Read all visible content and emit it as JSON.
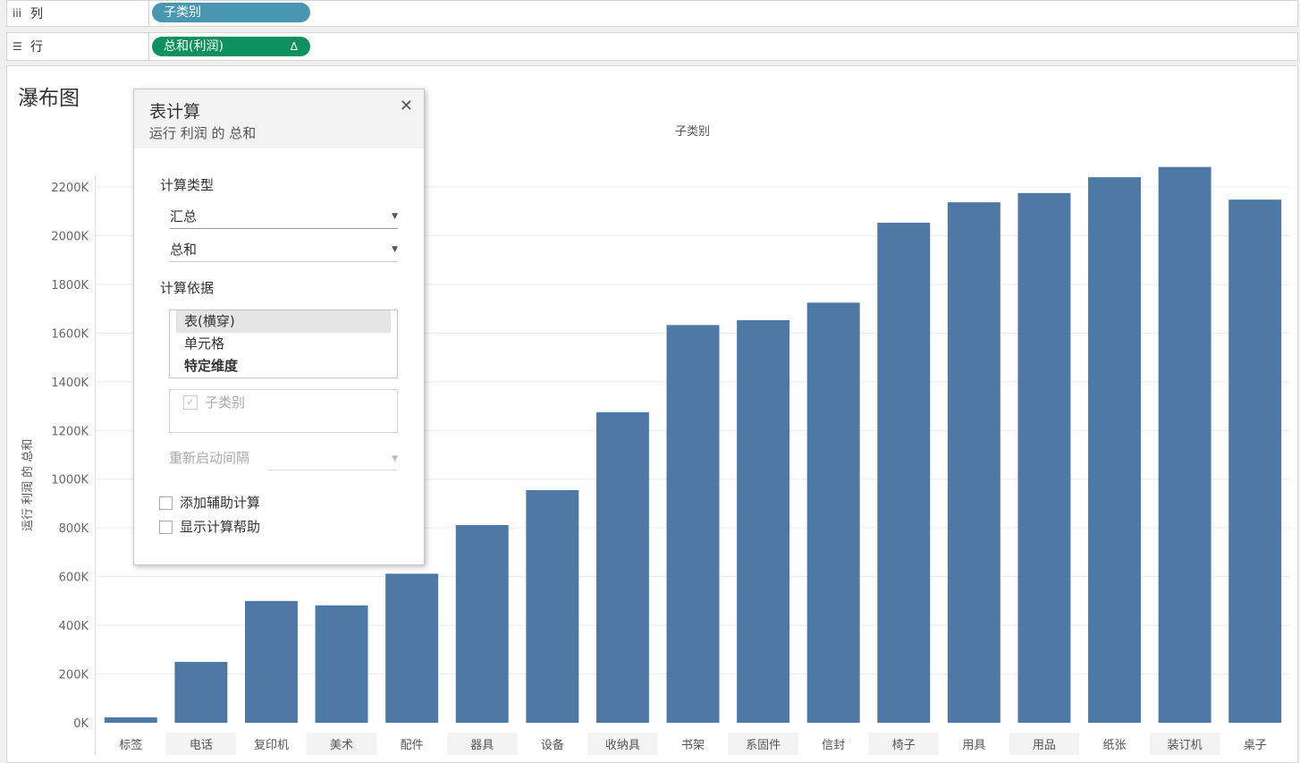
{
  "shelves": {
    "columns": {
      "label": "列",
      "pill": "子类别"
    },
    "rows": {
      "label": "行",
      "pill": "总和(利润)",
      "pill_marker": "Δ"
    }
  },
  "viz": {
    "title": "瀑布图",
    "column_header": "子类别",
    "y_axis_title": "运行 利润 的 总和"
  },
  "chart_data": {
    "type": "bar",
    "categories": [
      "标签",
      "电话",
      "复印机",
      "美术",
      "配件",
      "器具",
      "设备",
      "收纳具",
      "书架",
      "系固件",
      "信封",
      "椅子",
      "用具",
      "用品",
      "纸张",
      "装订机",
      "桌子"
    ],
    "values": [
      22000,
      250000,
      500000,
      482000,
      612000,
      812000,
      955000,
      1275000,
      1633000,
      1653000,
      1725000,
      2053000,
      2137000,
      2175000,
      2240000,
      2282000,
      2148000
    ],
    "y_ticks": [
      0,
      200000,
      400000,
      600000,
      800000,
      1000000,
      1200000,
      1400000,
      1600000,
      1800000,
      2000000,
      2200000
    ],
    "y_tick_labels": [
      "0K",
      "200K",
      "400K",
      "600K",
      "800K",
      "1000K",
      "1200K",
      "1400K",
      "1600K",
      "1800K",
      "2000K",
      "2200K"
    ],
    "ylim": [
      0,
      2200000
    ],
    "bar_color": "#4e79a7",
    "grid": true
  },
  "dialog": {
    "title": "表计算",
    "subtitle": "运行 利润 的 总和",
    "close_glyph": "✕",
    "calc_type_label": "计算类型",
    "calc_type_value": "汇总",
    "aggregation_value": "总和",
    "compute_using_label": "计算依据",
    "compute_using_options": [
      "表(横穿)",
      "单元格",
      "特定维度"
    ],
    "dimension": "子类别",
    "restart_label": "重新启动间隔",
    "add_secondary": "添加辅助计算",
    "show_help": "显示计算帮助"
  }
}
